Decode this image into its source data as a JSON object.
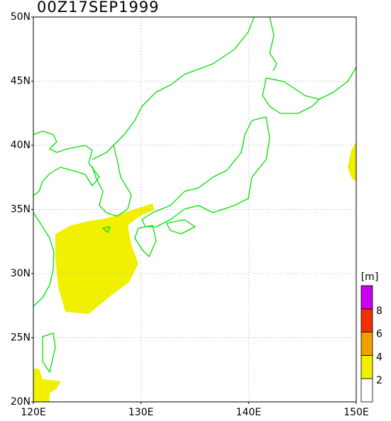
{
  "title": "00Z17SEP1999",
  "map": {
    "lon_range": [
      120,
      150
    ],
    "lat_range": [
      20,
      50
    ],
    "lat_ticks": [
      {
        "value": 20,
        "label": "20N"
      },
      {
        "value": 25,
        "label": "25N"
      },
      {
        "value": 30,
        "label": "30N"
      },
      {
        "value": 35,
        "label": "35N"
      },
      {
        "value": 40,
        "label": "40N"
      },
      {
        "value": 45,
        "label": "45N"
      },
      {
        "value": 50,
        "label": "50N"
      }
    ],
    "lon_ticks": [
      {
        "value": 120,
        "label": "120E"
      },
      {
        "value": 130,
        "label": "130E"
      },
      {
        "value": 140,
        "label": "140E"
      },
      {
        "value": 150,
        "label": "150E"
      }
    ],
    "grid": true
  },
  "colorbar": {
    "unit": "[m]",
    "levels": [
      2,
      4,
      6,
      8
    ],
    "colors": [
      "#ffffff",
      "#f0f000",
      "#f0a000",
      "#f03000",
      "#c800f0"
    ]
  }
}
